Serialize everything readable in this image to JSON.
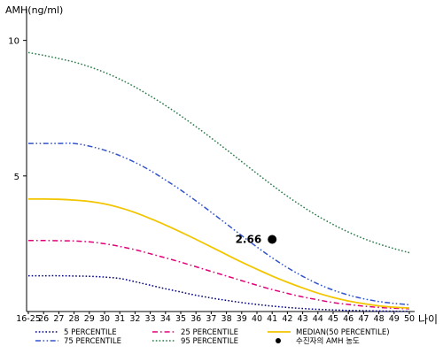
{
  "chart_data": {
    "type": "line",
    "ylabel": "AMH(ng/ml)",
    "xlabel": "나이",
    "ylim": [
      0,
      11
    ],
    "y_ticks": [
      5,
      10
    ],
    "x": [
      "16-25",
      "26",
      "27",
      "28",
      "29",
      "30",
      "31",
      "32",
      "33",
      "34",
      "35",
      "36",
      "37",
      "38",
      "39",
      "40",
      "41",
      "42",
      "43",
      "44",
      "45",
      "46",
      "47",
      "48",
      "49",
      "50"
    ],
    "series": [
      {
        "name": "5 PERCENTILE",
        "color": "#000080",
        "dash": "dot",
        "values": [
          1.32,
          1.32,
          1.32,
          1.31,
          1.3,
          1.27,
          1.22,
          1.1,
          0.97,
          0.84,
          0.72,
          0.6,
          0.5,
          0.41,
          0.33,
          0.26,
          0.2,
          0.15,
          0.11,
          0.08,
          0.06,
          0.04,
          0.03,
          0.02,
          0.01,
          0.01
        ]
      },
      {
        "name": "25 PERCENTILE",
        "color": "#e0007a",
        "dash": "dashdot",
        "values": [
          2.62,
          2.62,
          2.61,
          2.6,
          2.57,
          2.5,
          2.4,
          2.28,
          2.13,
          1.98,
          1.82,
          1.65,
          1.48,
          1.31,
          1.14,
          0.97,
          0.81,
          0.67,
          0.54,
          0.43,
          0.33,
          0.26,
          0.2,
          0.15,
          0.12,
          0.1
        ]
      },
      {
        "name": "MEDIAN(50 PERCENTILE)",
        "color": "#f2c500",
        "dash": "solid",
        "values": [
          4.15,
          4.15,
          4.14,
          4.11,
          4.06,
          3.97,
          3.83,
          3.65,
          3.43,
          3.19,
          2.93,
          2.66,
          2.38,
          2.1,
          1.82,
          1.56,
          1.31,
          1.08,
          0.87,
          0.68,
          0.52,
          0.39,
          0.29,
          0.21,
          0.16,
          0.13
        ]
      },
      {
        "name": "75 PERCENTILE",
        "color": "#3355cc",
        "dash": "dashdotdot",
        "values": [
          6.2,
          6.2,
          6.2,
          6.2,
          6.1,
          5.95,
          5.75,
          5.5,
          5.2,
          4.85,
          4.48,
          4.08,
          3.66,
          3.23,
          2.8,
          2.38,
          1.98,
          1.62,
          1.3,
          1.02,
          0.79,
          0.61,
          0.47,
          0.37,
          0.3,
          0.25
        ]
      },
      {
        "name": "95 PERCENTILE",
        "color": "#2a7a4a",
        "dash": "dot",
        "values": [
          9.55,
          9.45,
          9.33,
          9.2,
          9.03,
          8.82,
          8.57,
          8.28,
          7.95,
          7.6,
          7.22,
          6.82,
          6.4,
          5.97,
          5.53,
          5.09,
          4.66,
          4.25,
          3.87,
          3.52,
          3.21,
          2.93,
          2.69,
          2.49,
          2.32,
          2.17
        ]
      }
    ],
    "patient": {
      "label": "수진자의 AMH 농도",
      "x": "41",
      "y": 2.66,
      "value_label": "2.66",
      "color": "#000000"
    },
    "legend": {
      "placement": "bottom",
      "items": [
        {
          "label": "5 PERCENTILE",
          "series": 0
        },
        {
          "label": "25 PERCENTILE",
          "series": 1
        },
        {
          "label": "MEDIAN(50 PERCENTILE)",
          "series": 2
        },
        {
          "label": "75 PERCENTILE",
          "series": 3
        },
        {
          "label": "95 PERCENTILE",
          "series": 4
        },
        {
          "label": "수진자의 AMH 농도",
          "marker": true
        }
      ]
    }
  }
}
